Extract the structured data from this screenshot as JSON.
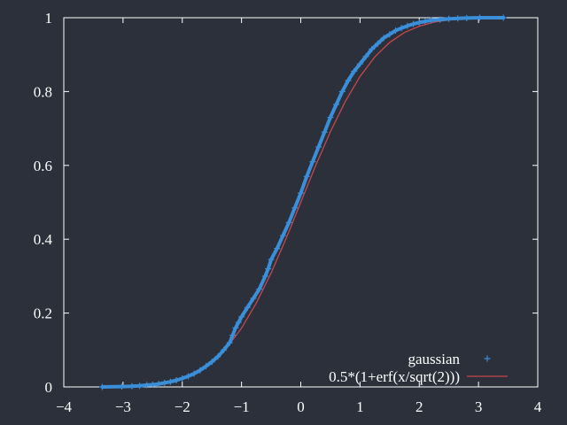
{
  "chart_data": {
    "type": "scatter",
    "title": "",
    "xlabel": "",
    "ylabel": "",
    "xlim": [
      -4,
      4
    ],
    "ylim": [
      0,
      1
    ],
    "x_ticks": [
      -4,
      -3,
      -2,
      -1,
      0,
      1,
      2,
      3,
      4
    ],
    "x_tick_labels": [
      "−4",
      "−3",
      "−2",
      "−1",
      "0",
      "1",
      "2",
      "3",
      "4"
    ],
    "y_ticks": [
      0,
      0.2,
      0.4,
      0.6,
      0.8,
      1
    ],
    "y_tick_labels": [
      "0",
      "0.2",
      "0.4",
      "0.6",
      "0.8",
      "1"
    ],
    "grid": false,
    "legend_position": "bottom-right",
    "background_color": "#2b303b",
    "axis_color": "#ffffff",
    "series": [
      {
        "name": "gaussian",
        "kind": "points",
        "marker": "+",
        "color": "#3b8fd9",
        "points": [
          [
            -3.35,
            0.0
          ],
          [
            -3.02,
            0.001
          ],
          [
            -2.85,
            0.002
          ],
          [
            -2.72,
            0.003
          ],
          [
            -2.6,
            0.005
          ],
          [
            -2.5,
            0.006
          ],
          [
            -2.4,
            0.008
          ],
          [
            -2.3,
            0.011
          ],
          [
            -2.2,
            0.014
          ],
          [
            -2.1,
            0.018
          ],
          [
            -2.0,
            0.023
          ],
          [
            -1.9,
            0.029
          ],
          [
            -1.8,
            0.036
          ],
          [
            -1.7,
            0.045
          ],
          [
            -1.6,
            0.056
          ],
          [
            -1.5,
            0.068
          ],
          [
            -1.4,
            0.082
          ],
          [
            -1.3,
            0.1
          ],
          [
            -1.2,
            0.12
          ],
          [
            -1.15,
            0.14
          ],
          [
            -1.1,
            0.16
          ],
          [
            -1.05,
            0.175
          ],
          [
            -1.0,
            0.19
          ],
          [
            -0.9,
            0.215
          ],
          [
            -0.8,
            0.24
          ],
          [
            -0.7,
            0.265
          ],
          [
            -0.6,
            0.3
          ],
          [
            -0.55,
            0.32
          ],
          [
            -0.5,
            0.345
          ],
          [
            -0.4,
            0.375
          ],
          [
            -0.3,
            0.41
          ],
          [
            -0.2,
            0.445
          ],
          [
            -0.1,
            0.485
          ],
          [
            0.0,
            0.525
          ],
          [
            0.1,
            0.57
          ],
          [
            0.2,
            0.61
          ],
          [
            0.3,
            0.65
          ],
          [
            0.4,
            0.69
          ],
          [
            0.5,
            0.73
          ],
          [
            0.6,
            0.765
          ],
          [
            0.7,
            0.8
          ],
          [
            0.8,
            0.83
          ],
          [
            0.9,
            0.855
          ],
          [
            1.0,
            0.875
          ],
          [
            1.1,
            0.895
          ],
          [
            1.2,
            0.915
          ],
          [
            1.3,
            0.93
          ],
          [
            1.4,
            0.945
          ],
          [
            1.5,
            0.955
          ],
          [
            1.6,
            0.965
          ],
          [
            1.7,
            0.972
          ],
          [
            1.8,
            0.978
          ],
          [
            1.9,
            0.983
          ],
          [
            2.0,
            0.987
          ],
          [
            2.1,
            0.99
          ],
          [
            2.2,
            0.993
          ],
          [
            2.35,
            0.995
          ],
          [
            2.5,
            0.997
          ],
          [
            2.65,
            0.998
          ],
          [
            2.8,
            0.999
          ],
          [
            3.02,
            1.0
          ],
          [
            3.42,
            1.0
          ]
        ]
      },
      {
        "name": "0.5*(1+erf(x/sqrt(2)))",
        "kind": "line",
        "color": "#c8474a",
        "x": [
          -3.0,
          -2.75,
          -2.5,
          -2.25,
          -2.0,
          -1.75,
          -1.5,
          -1.25,
          -1.0,
          -0.75,
          -0.5,
          -0.25,
          0.0,
          0.25,
          0.5,
          0.75,
          1.0,
          1.25,
          1.5,
          1.75,
          2.0,
          2.25,
          2.5,
          2.75,
          3.0
        ],
        "y": [
          0.001,
          0.003,
          0.006,
          0.012,
          0.023,
          0.04,
          0.067,
          0.106,
          0.159,
          0.227,
          0.309,
          0.401,
          0.5,
          0.599,
          0.691,
          0.773,
          0.841,
          0.894,
          0.933,
          0.96,
          0.977,
          0.988,
          0.994,
          0.997,
          0.999
        ]
      }
    ]
  }
}
